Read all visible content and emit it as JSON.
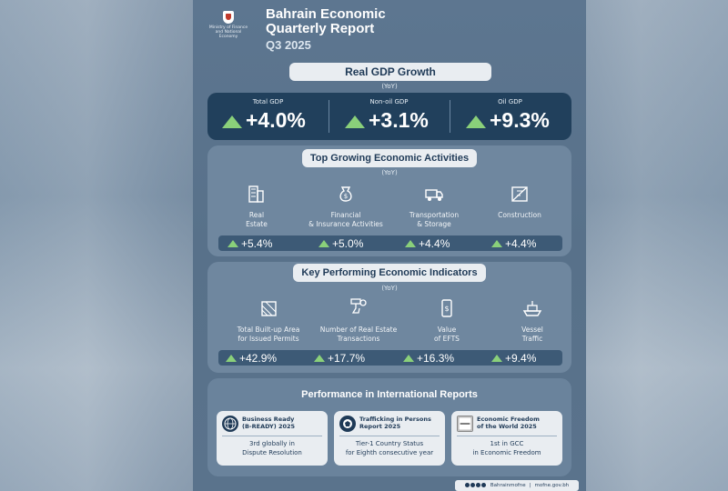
{
  "header": {
    "logo_text": "Ministry of Finance and National Economy",
    "title_line1": "Bahrain Economic",
    "title_line2": "Quarterly Report",
    "subtitle": "Q3 2025"
  },
  "gdp": {
    "title": "Real GDP Growth",
    "note": "(YoY)",
    "items": [
      {
        "label": "Total GDP",
        "value": "+4.0%"
      },
      {
        "label": "Non-oil GDP",
        "value": "+3.1%"
      },
      {
        "label": "Oil GDP",
        "value": "+9.3%"
      }
    ]
  },
  "activities": {
    "title": "Top Growing Economic Activities",
    "note": "(YoY)",
    "items": [
      {
        "label": "Real\nEstate",
        "value": "+5.4%",
        "icon": "building-icon"
      },
      {
        "label": "Financial\n& Insurance Activities",
        "value": "+5.0%",
        "icon": "money-bag-icon"
      },
      {
        "label": "Transportation\n& Storage",
        "value": "+4.4%",
        "icon": "truck-icon"
      },
      {
        "label": "Construction",
        "value": "+4.4%",
        "icon": "crane-icon"
      }
    ]
  },
  "indicators": {
    "title": "Key Performing Economic Indicators",
    "note": "(YoY)",
    "items": [
      {
        "label": "Total Built-up Area\nfor Issued Permits",
        "value": "+42.9%",
        "icon": "area-icon"
      },
      {
        "label": "Number of Real Estate\nTransactions",
        "value": "+17.7%",
        "icon": "handshake-key-icon"
      },
      {
        "label": "Value\nof EFTS",
        "value": "+16.3%",
        "icon": "phone-transfer-icon"
      },
      {
        "label": "Vessel\nTraffic",
        "value": "+9.4%",
        "icon": "ship-icon"
      }
    ]
  },
  "reports": {
    "title": "Performance in International Reports",
    "items": [
      {
        "title": "Business Ready\n(B-READY) 2025",
        "body_line1": "3rd globally in",
        "body_line2": "Dispute Resolution",
        "icon": "globe-icon"
      },
      {
        "title": "Trafficking in Persons\nReport 2025",
        "body_line1": "Tier-1 Country Status",
        "body_line2": "for Eighth consecutive year",
        "icon": "seal-icon"
      },
      {
        "title": "Economic Freedom\nof the World 2025",
        "body_line1": "1st in GCC",
        "body_line2": "in Economic Freedom",
        "icon": "fraser-logo-icon"
      }
    ]
  },
  "footer": {
    "handle": "Bahrainmofne",
    "website": "mofne.gov.bh"
  },
  "colors": {
    "card": "#5d7690",
    "dark": "#21405c",
    "accent_green": "#8ad07a",
    "pill": "#e9edf1"
  }
}
